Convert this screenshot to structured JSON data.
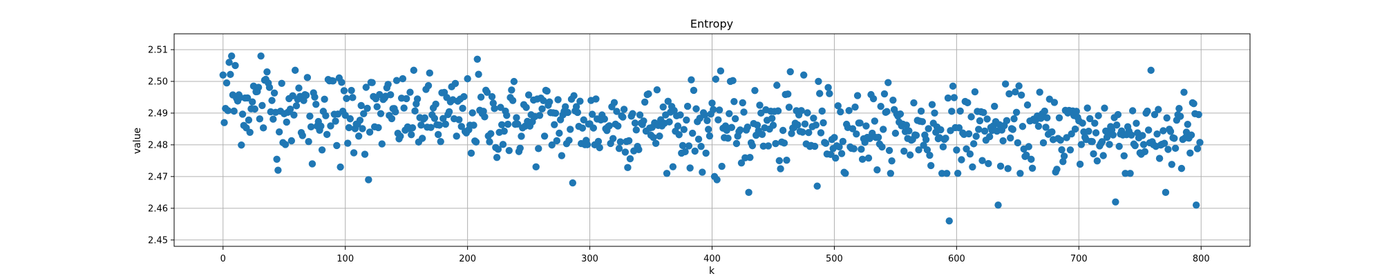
{
  "chart_data": {
    "type": "scatter",
    "title": "Entropy",
    "xlabel": "k",
    "ylabel": "value",
    "xlim": [
      -40,
      840
    ],
    "ylim": [
      2.448,
      2.515
    ],
    "xticks": [
      0,
      100,
      200,
      300,
      400,
      500,
      600,
      700,
      800
    ],
    "yticks": [
      2.45,
      2.46,
      2.47,
      2.48,
      2.49,
      2.5,
      2.51
    ],
    "ytick_labels": [
      "2.45",
      "2.46",
      "2.47",
      "2.48",
      "2.49",
      "2.50",
      "2.51"
    ],
    "grid": true,
    "marker_color": "#1f77b4",
    "n_points": 800,
    "sampling_note_hidden": false,
    "outliers": [
      {
        "x": 0,
        "y": 2.502
      },
      {
        "x": 1,
        "y": 2.487
      },
      {
        "x": 5,
        "y": 2.506
      },
      {
        "x": 7,
        "y": 2.508
      },
      {
        "x": 10,
        "y": 2.505
      },
      {
        "x": 31,
        "y": 2.508
      },
      {
        "x": 36,
        "y": 2.503
      },
      {
        "x": 45,
        "y": 2.472
      },
      {
        "x": 73,
        "y": 2.474
      },
      {
        "x": 96,
        "y": 2.473
      },
      {
        "x": 119,
        "y": 2.469
      },
      {
        "x": 208,
        "y": 2.507
      },
      {
        "x": 286,
        "y": 2.468
      },
      {
        "x": 402,
        "y": 2.47
      },
      {
        "x": 404,
        "y": 2.469
      },
      {
        "x": 415,
        "y": 2.5
      },
      {
        "x": 430,
        "y": 2.465
      },
      {
        "x": 455,
        "y": 2.475
      },
      {
        "x": 475,
        "y": 2.502
      },
      {
        "x": 487,
        "y": 2.5
      },
      {
        "x": 486,
        "y": 2.467
      },
      {
        "x": 594,
        "y": 2.456
      },
      {
        "x": 634,
        "y": 2.461
      },
      {
        "x": 730,
        "y": 2.462
      },
      {
        "x": 771,
        "y": 2.465
      },
      {
        "x": 796,
        "y": 2.461
      }
    ],
    "trend": [
      {
        "x": 0,
        "y": 2.4935
      },
      {
        "x": 100,
        "y": 2.4905
      },
      {
        "x": 200,
        "y": 2.4885
      },
      {
        "x": 300,
        "y": 2.487
      },
      {
        "x": 400,
        "y": 2.486
      },
      {
        "x": 500,
        "y": 2.485
      },
      {
        "x": 600,
        "y": 2.4845
      },
      {
        "x": 700,
        "y": 2.484
      },
      {
        "x": 800,
        "y": 2.483
      }
    ],
    "spread": 0.0075
  }
}
